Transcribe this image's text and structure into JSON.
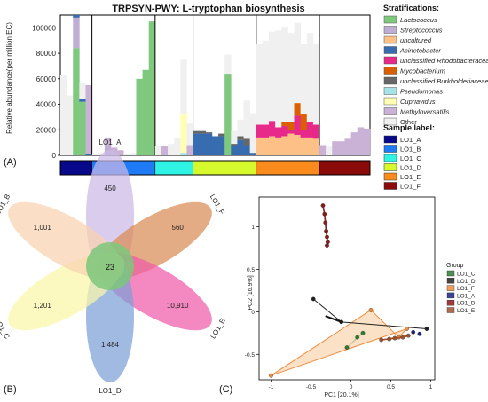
{
  "panelA": {
    "label": "(A)",
    "chart_data": {
      "type": "bar",
      "stacked": true,
      "title": "TRPSYN-PWY: L-tryptophan biosynthesis",
      "ylabel": "Relative abundance(per million EC)",
      "ylim": [
        0,
        110000
      ],
      "yticks": [
        0,
        20000,
        40000,
        60000,
        80000,
        100000
      ],
      "legend_title": "Stratifications:",
      "legend_placement": "right",
      "series": [
        {
          "name": "Lactococcus",
          "color": "#7fc97f"
        },
        {
          "name": "Streptococcus",
          "color": "#beaed4"
        },
        {
          "name": "uncultured",
          "color": "#fdc086"
        },
        {
          "name": "Acinetobacter",
          "color": "#386cb0"
        },
        {
          "name": "unclassified Rhodobacteraceae",
          "color": "#e7298a"
        },
        {
          "name": "Mycobacterium",
          "color": "#d95f02"
        },
        {
          "name": "unclassified Burkholderiaceae",
          "color": "#666666"
        },
        {
          "name": "Pseudomonas",
          "color": "#a6e3e9"
        },
        {
          "name": "Cupriavidus",
          "color": "#ffffb3"
        },
        {
          "name": "Methyloversatilis",
          "color": "#cab2d6"
        },
        {
          "name": "Other",
          "color": "#f0f0f0"
        }
      ],
      "sample_label_title": "Sample label:",
      "groups": [
        {
          "name": "LO1_A",
          "color": "#08088a",
          "bars": [
            [
              0,
              0,
              0,
              0,
              0,
              0,
              0,
              0,
              0,
              0,
              63000
            ],
            [
              0,
              0,
              0,
              0,
              0,
              0,
              0,
              0,
              0,
              0,
              47000
            ],
            [
              84000,
              24000,
              0,
              2000,
              0,
              0,
              0,
              0,
              0,
              0,
              0
            ],
            [
              42000,
              0,
              0,
              2000,
              0,
              0,
              0,
              0,
              0,
              0,
              13000
            ],
            [
              0,
              0,
              0,
              1000,
              0,
              0,
              0,
              0,
              0,
              54000,
              0
            ]
          ]
        },
        {
          "name": "LO1_B",
          "color": "#1e7bf5",
          "bars": [
            [
              0,
              0,
              0,
              0,
              0,
              0,
              0,
              0,
              0,
              0,
              500
            ],
            [
              0,
              0,
              0,
              0,
              0,
              0,
              0,
              0,
              0,
              0,
              2000
            ],
            [
              0,
              7000,
              0,
              0,
              0,
              0,
              0,
              0,
              0,
              7000,
              0
            ],
            [
              0,
              0,
              0,
              0,
              0,
              0,
              0,
              0,
              0,
              6000,
              0
            ],
            [
              0,
              0,
              0,
              0,
              0,
              0,
              0,
              0,
              0,
              4000,
              0
            ],
            [
              0,
              0,
              0,
              0,
              0,
              0,
              0,
              0,
              0,
              0,
              1000
            ],
            [
              0,
              0,
              0,
              0,
              0,
              0,
              0,
              0,
              0,
              0,
              2000
            ],
            [
              60000,
              0,
              0,
              0,
              0,
              0,
              0,
              0,
              0,
              0,
              0
            ],
            [
              67000,
              0,
              0,
              0,
              0,
              0,
              0,
              0,
              0,
              0,
              0
            ],
            [
              105000,
              0,
              0,
              0,
              0,
              0,
              0,
              0,
              0,
              0,
              0
            ]
          ]
        },
        {
          "name": "LO1_C",
          "color": "#2ef3e5",
          "bars": [
            [
              0,
              0,
              0,
              0,
              0,
              0,
              0,
              0,
              0,
              0,
              7000
            ],
            [
              0,
              0,
              0,
              0,
              0,
              0,
              0,
              0,
              0,
              7000,
              0
            ],
            [
              0,
              0,
              0,
              0,
              0,
              0,
              0,
              0,
              0,
              0,
              9000
            ],
            [
              0,
              0,
              0,
              0,
              0,
              0,
              0,
              0,
              0,
              0,
              14000
            ],
            [
              0,
              0,
              0,
              0,
              0,
              0,
              0,
              2000,
              30000,
              0,
              43000
            ],
            [
              0,
              0,
              0,
              0,
              0,
              0,
              0,
              0,
              0,
              8000,
              17000
            ]
          ]
        },
        {
          "name": "LO1_D",
          "color": "#d6f92e",
          "bars": [
            [
              0,
              0,
              0,
              17000,
              0,
              0,
              2000,
              0,
              0,
              0,
              0
            ],
            [
              0,
              0,
              0,
              17000,
              0,
              0,
              2000,
              0,
              0,
              0,
              0
            ],
            [
              0,
              0,
              0,
              17000,
              0,
              0,
              1000,
              0,
              0,
              0,
              0
            ],
            [
              0,
              0,
              0,
              15000,
              0,
              0,
              0,
              0,
              0,
              0,
              0
            ],
            [
              0,
              0,
              0,
              15000,
              0,
              0,
              2000,
              0,
              0,
              0,
              0
            ],
            [
              64000,
              0,
              0,
              0,
              0,
              0,
              0,
              0,
              0,
              0,
              15000
            ],
            [
              0,
              0,
              0,
              8000,
              0,
              0,
              1000,
              0,
              0,
              0,
              10000
            ],
            [
              0,
              0,
              0,
              12000,
              0,
              0,
              3000,
              0,
              0,
              0,
              13000
            ],
            [
              0,
              0,
              0,
              8000,
              0,
              0,
              5000,
              0,
              0,
              0,
              30000
            ],
            [
              0,
              0,
              0,
              2000,
              0,
              0,
              0,
              0,
              0,
              0,
              31000
            ]
          ]
        },
        {
          "name": "LO1_E",
          "color": "#f98b1c",
          "bars": [
            [
              0,
              0,
              14000,
              0,
              10000,
              0,
              0,
              0,
              0,
              0,
              63000
            ],
            [
              0,
              0,
              14000,
              0,
              10000,
              0,
              0,
              0,
              0,
              0,
              66000
            ],
            [
              0,
              0,
              15000,
              0,
              12000,
              0,
              0,
              0,
              0,
              0,
              70000
            ],
            [
              0,
              0,
              14000,
              0,
              8000,
              0,
              0,
              0,
              0,
              0,
              76000
            ],
            [
              0,
              0,
              15000,
              0,
              8000,
              3000,
              0,
              0,
              0,
              0,
              75000
            ],
            [
              0,
              0,
              17000,
              0,
              3000,
              6000,
              0,
              0,
              0,
              0,
              70000
            ],
            [
              0,
              0,
              16000,
              0,
              15000,
              10000,
              0,
              0,
              0,
              0,
              63000
            ],
            [
              0,
              0,
              14000,
              0,
              6000,
              12000,
              0,
              0,
              0,
              0,
              55000
            ],
            [
              0,
              0,
              14000,
              0,
              12000,
              0,
              0,
              0,
              0,
              0,
              70000
            ],
            [
              0,
              0,
              13000,
              0,
              11000,
              0,
              0,
              0,
              0,
              0,
              63000
            ]
          ]
        },
        {
          "name": "LO1_F",
          "color": "#8b0a0a",
          "bars": [
            [
              0,
              0,
              0,
              0,
              0,
              0,
              0,
              0,
              0,
              8000,
              0
            ],
            [
              0,
              0,
              0,
              0,
              0,
              0,
              0,
              0,
              0,
              0,
              7000
            ],
            [
              0,
              0,
              0,
              0,
              0,
              0,
              0,
              0,
              0,
              11000,
              0
            ],
            [
              0,
              0,
              0,
              0,
              0,
              0,
              0,
              0,
              0,
              11000,
              0
            ],
            [
              0,
              0,
              0,
              0,
              0,
              0,
              0,
              0,
              0,
              13000,
              0
            ],
            [
              0,
              0,
              0,
              0,
              0,
              0,
              0,
              0,
              0,
              18000,
              0
            ],
            [
              0,
              0,
              0,
              0,
              0,
              0,
              0,
              0,
              0,
              22000,
              0
            ],
            [
              0,
              0,
              0,
              0,
              0,
              0,
              0,
              0,
              0,
              21000,
              0
            ]
          ]
        }
      ]
    }
  },
  "panelB": {
    "label": "(B)",
    "chart_data": {
      "type": "venn",
      "petals": [
        {
          "name": "LO1_A",
          "unique": "450",
          "color": "#cbb8e6"
        },
        {
          "name": "LO1_F",
          "unique": "560",
          "color": "#d98c55"
        },
        {
          "name": "LO1_E",
          "unique": "10,910",
          "color": "#f05aa8"
        },
        {
          "name": "LO1_D",
          "unique": "1,484",
          "color": "#7d9fd6"
        },
        {
          "name": "LO1_C",
          "unique": "1,201",
          "color": "#fbf6a8"
        },
        {
          "name": "LO1_B",
          "unique": "1,001",
          "color": "#f8d2b0"
        }
      ],
      "core": "23",
      "core_color": "#7cc77c"
    }
  },
  "panelC": {
    "label": "(C)",
    "chart_data": {
      "type": "scatter",
      "xlabel": "PC1 [20.1%]",
      "ylabel": "PC2 [16.9%]",
      "xlim": [
        -1.15,
        1.05
      ],
      "ylim": [
        -0.8,
        1.35
      ],
      "xticks": [
        -1.0,
        -0.5,
        0.0,
        0.5,
        1.0
      ],
      "yticks": [
        -0.5,
        0.0,
        0.5,
        1.0
      ],
      "legend_title": "Group",
      "legend_placement": "right",
      "groups": [
        {
          "name": "LO1_C",
          "color": "#2e7d32",
          "points": [
            [
              0.08,
              -0.3
            ],
            [
              -0.05,
              -0.42
            ],
            [
              0.15,
              -0.25
            ]
          ]
        },
        {
          "name": "LO1_D",
          "color": "#222222",
          "points": [
            [
              -0.47,
              0.15
            ],
            [
              -0.12,
              -0.12
            ],
            [
              0.95,
              -0.2
            ]
          ]
        },
        {
          "name": "LO1_F",
          "color": "#f08a3c",
          "points": [
            [
              -1.0,
              -0.75
            ],
            [
              0.7,
              -0.2
            ],
            [
              0.6,
              -0.3
            ],
            [
              0.25,
              0.02
            ]
          ]
        },
        {
          "name": "LO1_A",
          "color": "#1a237e",
          "points": [
            [
              0.78,
              -0.24
            ],
            [
              0.86,
              -0.26
            ]
          ]
        },
        {
          "name": "LO1_B",
          "color": "#8b1a1a",
          "points": [
            [
              -0.35,
              1.25
            ],
            [
              -0.33,
              1.15
            ],
            [
              -0.32,
              1.05
            ],
            [
              -0.31,
              0.95
            ],
            [
              -0.3,
              0.88
            ],
            [
              -0.29,
              0.82
            ],
            [
              -0.3,
              0.78
            ]
          ]
        },
        {
          "name": "LO1_E",
          "color": "#a0522d",
          "points": [
            [
              0.38,
              -0.33
            ],
            [
              0.48,
              -0.32
            ],
            [
              0.55,
              -0.31
            ],
            [
              0.65,
              -0.3
            ],
            [
              0.72,
              -0.28
            ]
          ]
        }
      ]
    }
  }
}
